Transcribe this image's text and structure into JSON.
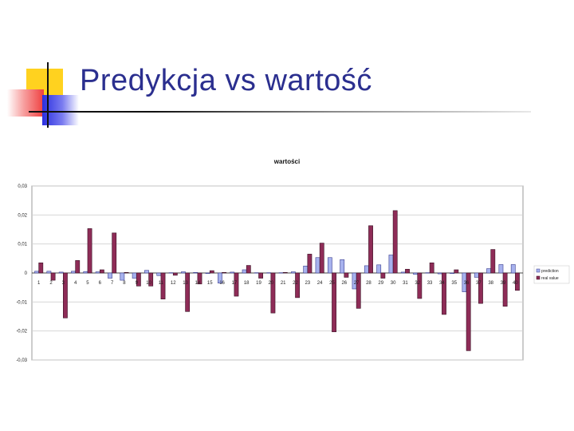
{
  "slide": {
    "title": "Predykcja vs wartość"
  },
  "colors": {
    "title": "#2b2f8f",
    "prediction_fill": "#a7b2ee",
    "prediction_stroke": "#3c3f8f",
    "real_fill": "#8e2c57",
    "real_stroke": "#3a1024",
    "plot_bg": "#ffffff",
    "frame": "#9a9a9a"
  },
  "chart_data": {
    "type": "bar",
    "title": "wartości",
    "xlabel": "",
    "ylabel": "",
    "ylim": [
      -0.03,
      0.03
    ],
    "yticks": [
      0.03,
      0.02,
      0.01,
      0,
      -0.01,
      -0.02,
      -0.03
    ],
    "ytick_labels": [
      "0,03",
      "0,02",
      "0,01",
      "0",
      "-0,01",
      "-0,02",
      "-0,03"
    ],
    "grid": true,
    "legend_position": "right",
    "categories": [
      "1",
      "2",
      "3",
      "4",
      "5",
      "6",
      "7",
      "8",
      "9",
      "10",
      "11",
      "12",
      "13",
      "14",
      "15",
      "16",
      "17",
      "18",
      "19",
      "20",
      "21",
      "22",
      "23",
      "24",
      "25",
      "26",
      "27",
      "28",
      "29",
      "30",
      "31",
      "32",
      "33",
      "34",
      "35",
      "36",
      "37",
      "38",
      "39",
      "40"
    ],
    "series": [
      {
        "name": "prediction",
        "values": [
          0.0006,
          0.0006,
          0.0003,
          0.0006,
          0.0005,
          0.0004,
          -0.0018,
          -0.0025,
          -0.0018,
          0.0009,
          -0.0009,
          0.0001,
          0.0004,
          0.0002,
          -0.0002,
          -0.0035,
          0.0003,
          0.0011,
          0.0001,
          0.0001,
          0.0001,
          0.0004,
          0.0024,
          0.0053,
          0.0053,
          0.0046,
          -0.0055,
          0.0025,
          0.0028,
          0.0062,
          0.0003,
          -0.0005,
          0.0001,
          -0.0003,
          -0.0002,
          -0.0065,
          -0.0015,
          0.0015,
          0.0029,
          0.0029
        ]
      },
      {
        "name": "real value",
        "values": [
          0.0035,
          -0.0025,
          -0.0155,
          0.0043,
          0.0153,
          0.0011,
          0.0138,
          0.0002,
          -0.0045,
          -0.0045,
          -0.009,
          -0.0008,
          -0.0133,
          -0.0038,
          0.0008,
          0.0002,
          -0.008,
          0.0026,
          -0.0018,
          -0.0138,
          0.0002,
          -0.0085,
          0.0065,
          0.0103,
          -0.0203,
          -0.0015,
          -0.0122,
          0.0163,
          -0.0018,
          0.0215,
          0.0013,
          -0.0088,
          0.0035,
          -0.0143,
          0.0011,
          -0.0268,
          -0.0105,
          0.0081,
          -0.0115,
          -0.006
        ]
      }
    ]
  }
}
